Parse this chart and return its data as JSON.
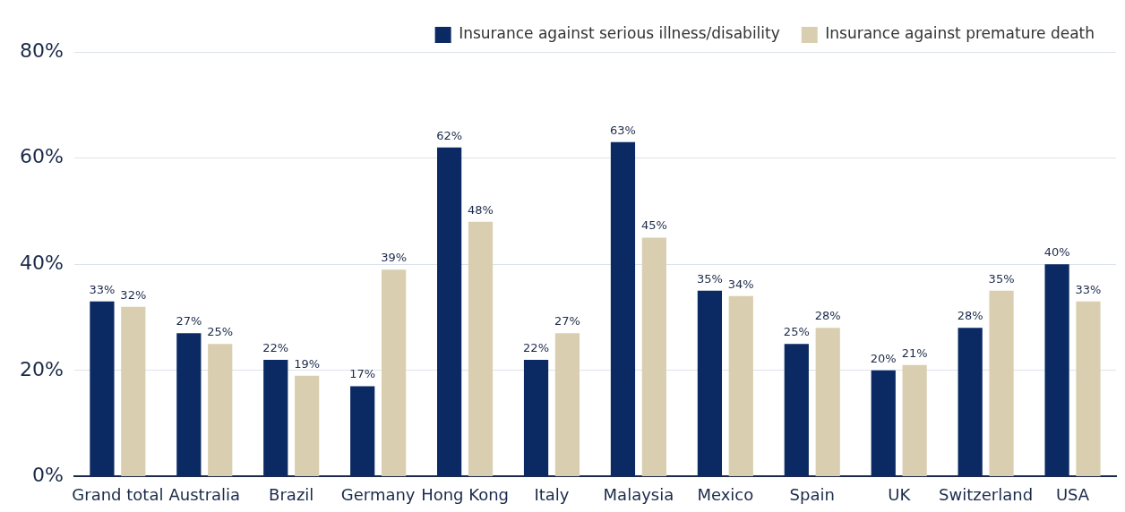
{
  "chart_data": {
    "type": "bar",
    "categories": [
      "Grand total",
      "Australia",
      "Brazil",
      "Germany",
      "Hong Kong",
      "Italy",
      "Malaysia",
      "Mexico",
      "Spain",
      "UK",
      "Switzerland",
      "USA"
    ],
    "series": [
      {
        "name": "Insurance against serious illness/disability",
        "color": "#0b2a63",
        "values": [
          33,
          27,
          22,
          17,
          62,
          22,
          63,
          35,
          25,
          20,
          28,
          40
        ],
        "value_labels": [
          "33%",
          "27%",
          "22%",
          "17%",
          "62%",
          "22%",
          "63%",
          "35%",
          "25%",
          "20%",
          "28%",
          "40%"
        ]
      },
      {
        "name": "Insurance against premature death",
        "color": "#d9cfb0",
        "values": [
          32,
          25,
          19,
          39,
          48,
          27,
          45,
          34,
          28,
          21,
          35,
          33
        ],
        "value_labels": [
          "32%",
          "25%",
          "19%",
          "39%",
          "48%",
          "27%",
          "45%",
          "34%",
          "28%",
          "21%",
          "35%",
          "33%"
        ]
      }
    ],
    "ylim": [
      0,
      80
    ],
    "yticks": [
      {
        "value": 0,
        "label": "0%"
      },
      {
        "value": 20,
        "label": "20%"
      },
      {
        "value": 40,
        "label": "40%"
      },
      {
        "value": 60,
        "label": "60%"
      },
      {
        "value": 80,
        "label": "80%"
      }
    ],
    "grid": "y",
    "legend": "top right"
  }
}
